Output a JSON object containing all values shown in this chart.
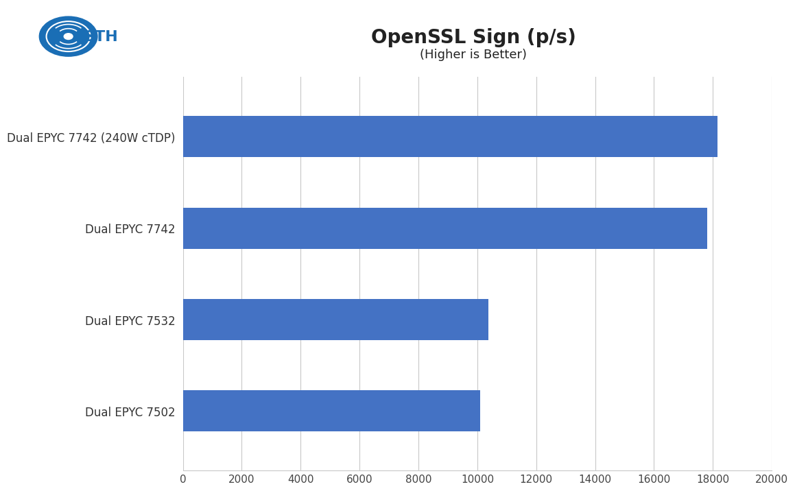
{
  "title": "OpenSSL Sign (p/s)",
  "subtitle": "(Higher is Better)",
  "categories": [
    "Dual EPYC 7502",
    "Dual EPYC 7532",
    "Dual EPYC 7742",
    "Dual EPYC 7742 (240W cTDP)"
  ],
  "values": [
    10100,
    10380,
    17800,
    18150
  ],
  "bar_color": "#4472c4",
  "background_color": "#ffffff",
  "xlim": [
    0,
    20000
  ],
  "xticks": [
    0,
    2000,
    4000,
    6000,
    8000,
    10000,
    12000,
    14000,
    16000,
    18000,
    20000
  ],
  "grid_color": "#c8c8c8",
  "title_fontsize": 20,
  "subtitle_fontsize": 13,
  "label_fontsize": 12,
  "tick_fontsize": 11,
  "bar_height": 0.45,
  "logo_circle_color": "#1a6eb5",
  "logo_text_color": "#ffffff",
  "logo_sth_color": "#1a6eb5"
}
